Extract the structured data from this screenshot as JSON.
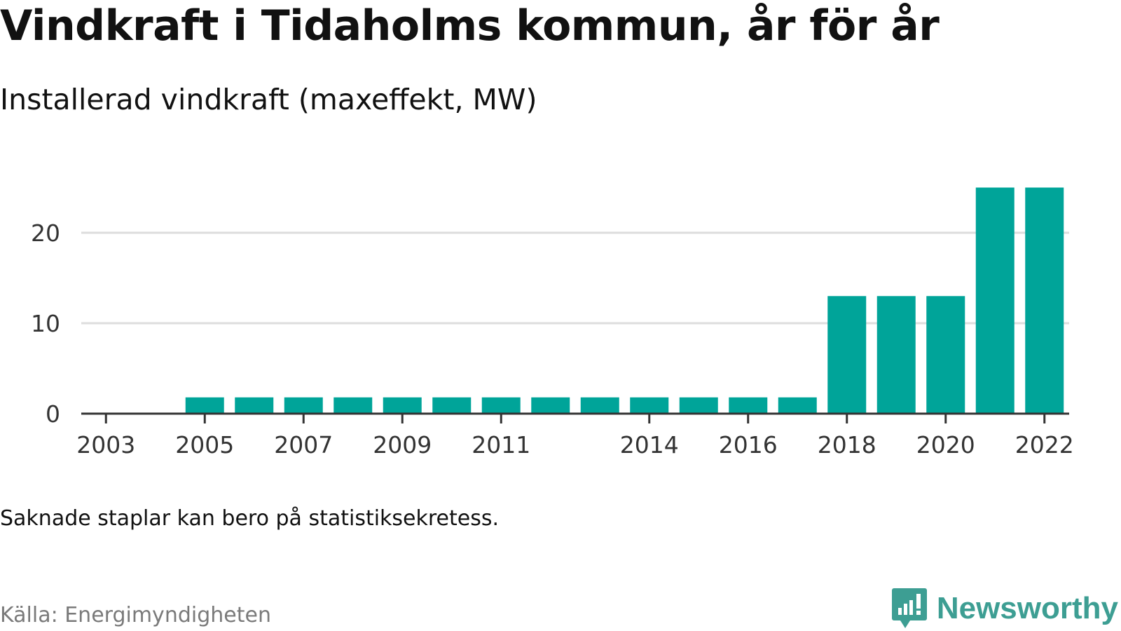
{
  "title": "Vindkraft i Tidaholms kommun, år för år",
  "subtitle": "Installerad vindkraft (maxeffekt, MW)",
  "note": "Saknade staplar kan bero på statistiksekretess.",
  "source": "Källa: Energimyndigheten",
  "brand": {
    "name": "Newsworthy",
    "icon": "newsworthy-logo-icon",
    "color": "#3d9e93"
  },
  "chart_data": {
    "type": "bar",
    "categories": [
      "2003",
      "2004",
      "2005",
      "2006",
      "2007",
      "2008",
      "2009",
      "2010",
      "2011",
      "2012",
      "2013",
      "2014",
      "2015",
      "2016",
      "2017",
      "2018",
      "2019",
      "2020",
      "2021",
      "2022"
    ],
    "values": [
      null,
      null,
      1.8,
      1.8,
      1.8,
      1.8,
      1.8,
      1.8,
      1.8,
      1.8,
      1.8,
      1.8,
      1.8,
      1.8,
      1.8,
      13,
      13,
      13,
      25,
      25
    ],
    "x_tick_labels": [
      "2003",
      "2005",
      "2007",
      "2009",
      "2011",
      "2014",
      "2016",
      "2018",
      "2020",
      "2022"
    ],
    "y_ticks": [
      0,
      10,
      20
    ],
    "ylim": [
      0,
      25
    ],
    "bar_color": "#00a499",
    "grid": true,
    "xlabel": "",
    "ylabel": ""
  }
}
